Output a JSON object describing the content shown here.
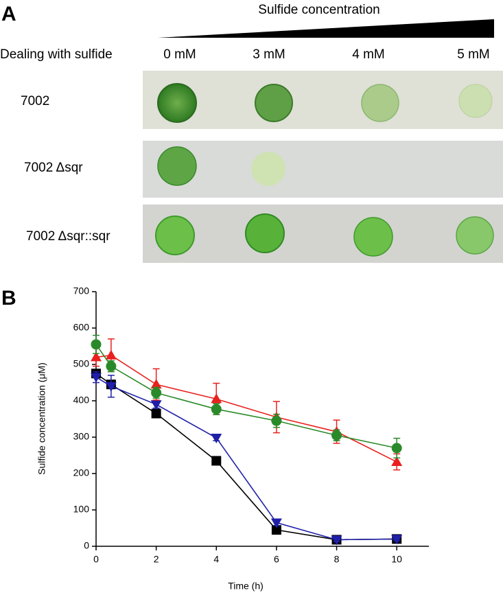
{
  "panel_a": {
    "label": "A",
    "title": "Sulfide concentration",
    "row_header": "Dealing with sulfide",
    "columns": [
      "0 mM",
      "3 mM",
      "4 mM",
      "5 mM"
    ],
    "rows": [
      "7002",
      "7002 Δsqr",
      "7002 Δsqr::sqr"
    ]
  },
  "chart_data": {
    "type": "line",
    "label": "B",
    "x_label": "Time (h)",
    "y_label": "Sulfide concentration (μM)",
    "x": [
      0,
      0.5,
      2,
      4,
      6,
      8,
      10
    ],
    "series": [
      {
        "color": "#000000",
        "marker": "square",
        "values": [
          475,
          445,
          365,
          235,
          45,
          18,
          20
        ],
        "errors": [
          10,
          10,
          8,
          8,
          10,
          5,
          5
        ]
      },
      {
        "color": "#1f1fa8",
        "marker": "triangle-down",
        "values": [
          465,
          440,
          390,
          298,
          65,
          18,
          20
        ],
        "errors": [
          15,
          30,
          10,
          8,
          8,
          5,
          5
        ]
      },
      {
        "color": "#e8201e",
        "marker": "triangle-up",
        "values": [
          520,
          525,
          445,
          405,
          355,
          315,
          232
        ],
        "errors": [
          25,
          45,
          43,
          43,
          43,
          32,
          22
        ]
      },
      {
        "color": "#2a8a2a",
        "marker": "circle",
        "values": [
          555,
          495,
          422,
          377,
          345,
          305,
          270
        ],
        "errors": [
          25,
          15,
          15,
          15,
          18,
          15,
          27
        ]
      }
    ],
    "xlim": [
      0,
      11
    ],
    "ylim": [
      0,
      700
    ],
    "xticks": [
      0,
      2,
      4,
      6,
      8,
      10
    ],
    "yticks": [
      0,
      100,
      200,
      300,
      400,
      500,
      600,
      700
    ]
  }
}
